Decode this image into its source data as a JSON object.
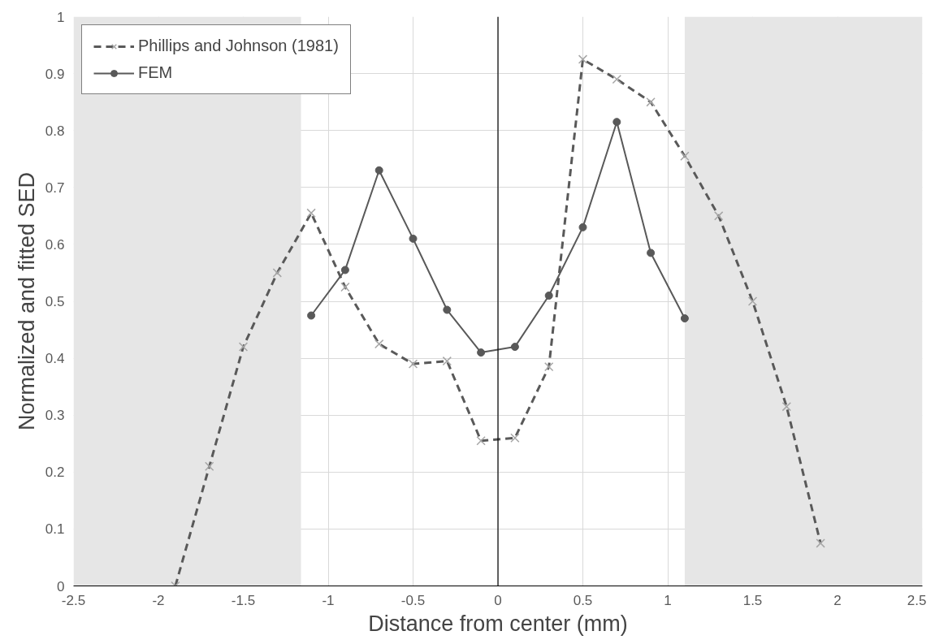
{
  "chart_data": {
    "type": "line",
    "xlabel": "Distance from center (mm)",
    "ylabel": "Normalized and fitted SED",
    "xlim": [
      -2.5,
      2.5
    ],
    "xticks": [
      -2.5,
      -2,
      -1.5,
      -1,
      -0.5,
      0,
      0.5,
      1,
      1.5,
      2,
      2.5
    ],
    "ylim": [
      0,
      1
    ],
    "yticks": [
      0,
      0.1,
      0.2,
      0.3,
      0.4,
      0.5,
      0.6,
      0.7,
      0.8,
      0.9,
      1
    ],
    "grid": true,
    "legend": "top left",
    "bands": [
      {
        "axis": "x",
        "from": -2.5,
        "to": -1.16,
        "color": "#e6e6e6"
      },
      {
        "axis": "x",
        "from": 1.1,
        "to": 2.5,
        "color": "#e6e6e6"
      }
    ],
    "series": [
      {
        "name": "Phillips and Johnson (1981)",
        "color": "#595959",
        "marker": "cross",
        "line_style": "dashed",
        "x": [
          -1.9,
          -1.7,
          -1.5,
          -1.3,
          -1.1,
          -0.9,
          -0.7,
          -0.5,
          -0.3,
          -0.1,
          0.1,
          0.3,
          0.5,
          0.7,
          0.9,
          1.1,
          1.3,
          1.5,
          1.7,
          1.9
        ],
        "values": [
          0,
          0.21,
          0.42,
          0.55,
          0.655,
          0.525,
          0.425,
          0.39,
          0.395,
          0.255,
          0.26,
          0.385,
          0.925,
          0.89,
          0.85,
          0.755,
          0.65,
          0.5,
          0.315,
          0.075
        ]
      },
      {
        "name": "FEM",
        "color": "#595959",
        "marker": "circle",
        "line_style": "solid",
        "x": [
          -1.1,
          -0.9,
          -0.7,
          -0.5,
          -0.3,
          -0.1,
          0.1,
          0.3,
          0.5,
          0.7,
          0.9,
          1.1
        ],
        "values": [
          0.475,
          0.555,
          0.73,
          0.61,
          0.485,
          0.41,
          0.42,
          0.51,
          0.63,
          0.815,
          0.585,
          0.47
        ]
      }
    ]
  }
}
